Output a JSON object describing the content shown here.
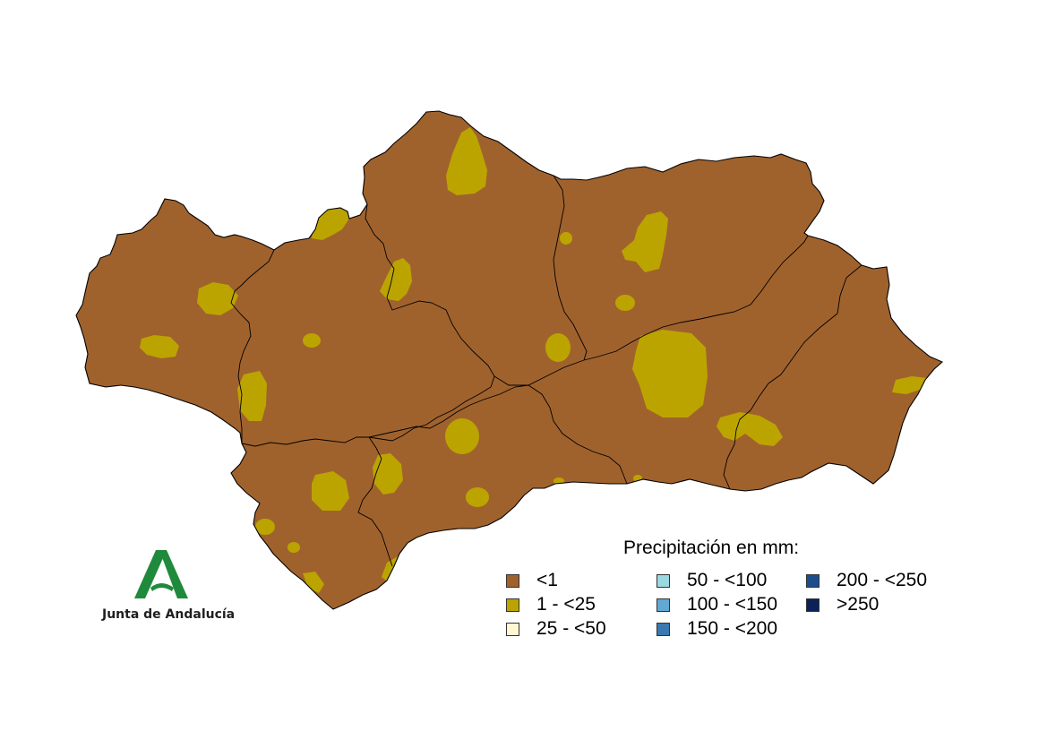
{
  "legend": {
    "title": "Precipitación en mm:",
    "items": [
      {
        "label": "<1",
        "color": "#a0622d"
      },
      {
        "label": "1 - <25",
        "color": "#bca400"
      },
      {
        "label": "25 - <50",
        "color": "#fff8d2"
      },
      {
        "label": "50 - <100",
        "color": "#9ad8e2"
      },
      {
        "label": "100 - <150",
        "color": "#62a8d4"
      },
      {
        "label": "150 - <200",
        "color": "#3a78b0"
      },
      {
        "label": "200 - <250",
        "color": "#1c4e8c"
      },
      {
        "label": ">250",
        "color": "#0a2258"
      }
    ]
  },
  "logo": {
    "text": "Junta de Andalucía",
    "color": "#1f8a3c",
    "icon": "andalucia-a-emblem"
  },
  "map": {
    "region": "Andalucía",
    "base_class": "<1",
    "patch_class": "1 - <25"
  }
}
